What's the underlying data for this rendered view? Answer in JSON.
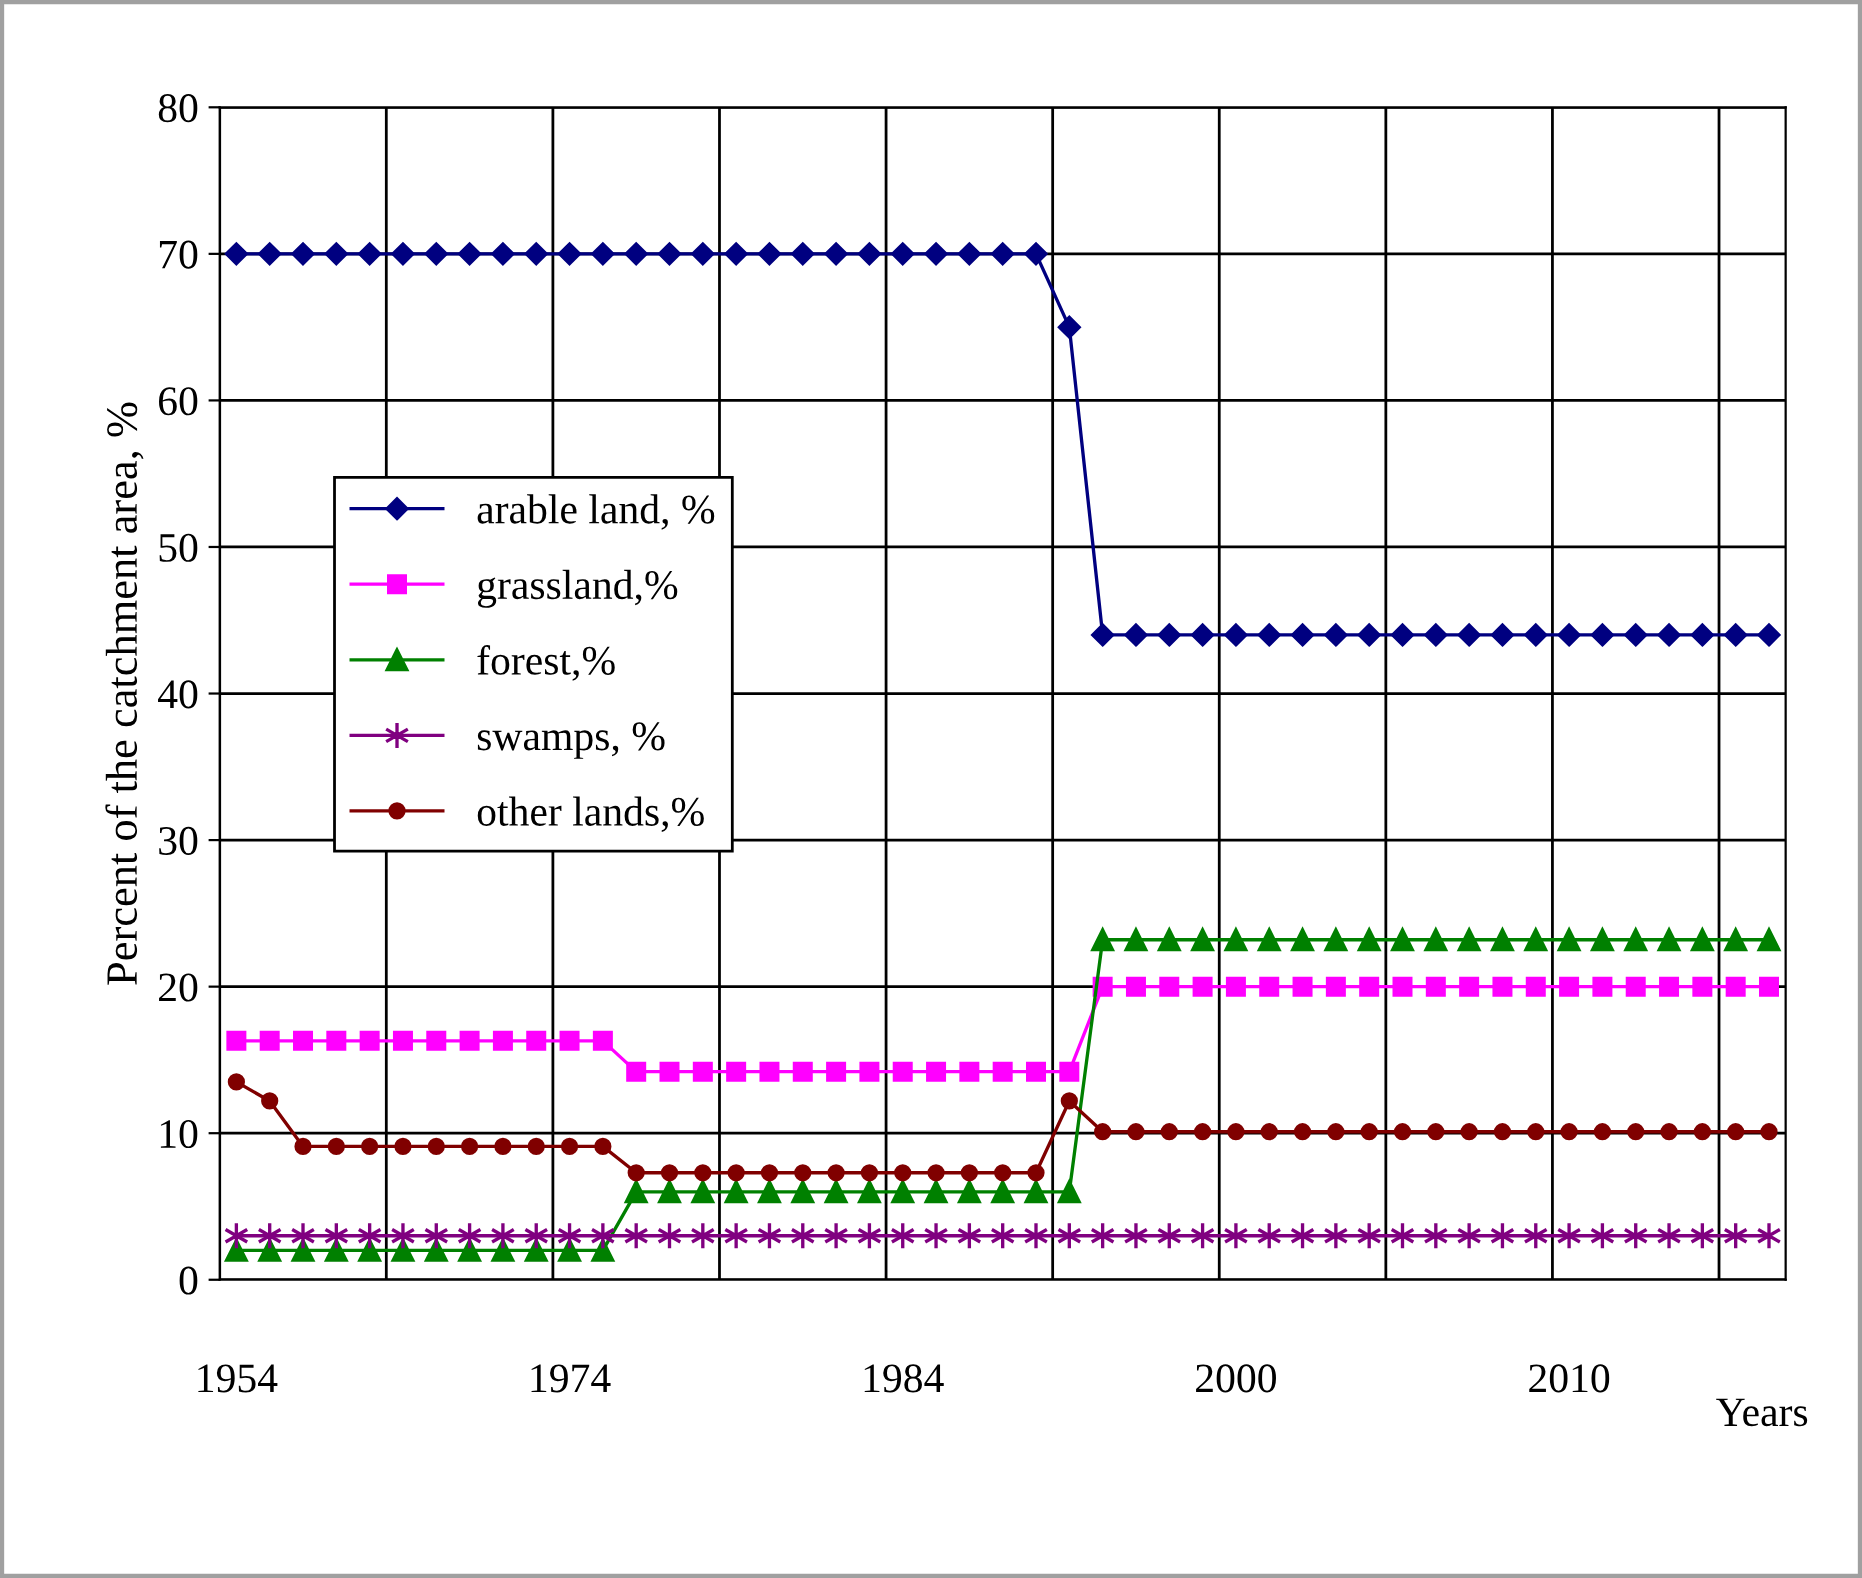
{
  "chart_data": {
    "type": "line",
    "xlabel": "Years",
    "ylabel": "Percent of the catchment area, %",
    "categories": [
      "1954",
      null,
      null,
      null,
      null,
      null,
      null,
      null,
      null,
      null,
      "1974",
      null,
      null,
      null,
      null,
      null,
      null,
      null,
      null,
      null,
      "1984",
      null,
      null,
      null,
      null,
      null,
      null,
      null,
      null,
      null,
      "2000",
      null,
      null,
      null,
      null,
      null,
      null,
      null,
      null,
      null,
      "2010",
      null,
      null,
      null,
      null,
      null,
      null
    ],
    "series": [
      {
        "name": "arable land, %",
        "color": "#000080",
        "marker": "diamond",
        "values": [
          70,
          70,
          70,
          70,
          70,
          70,
          70,
          70,
          70,
          70,
          70,
          70,
          70,
          70,
          70,
          70,
          70,
          70,
          70,
          70,
          70,
          70,
          70,
          70,
          70,
          65,
          44,
          44,
          44,
          44,
          44,
          44,
          44,
          44,
          44,
          44,
          44,
          44,
          44,
          44,
          44,
          44,
          44,
          44,
          44,
          44,
          44
        ]
      },
      {
        "name": "grassland,%",
        "color": "#ff00ff",
        "marker": "square",
        "values": [
          16.3,
          16.3,
          16.3,
          16.3,
          16.3,
          16.3,
          16.3,
          16.3,
          16.3,
          16.3,
          16.3,
          16.3,
          14.2,
          14.2,
          14.2,
          14.2,
          14.2,
          14.2,
          14.2,
          14.2,
          14.2,
          14.2,
          14.2,
          14.2,
          14.2,
          14.2,
          20,
          20,
          20,
          20,
          20,
          20,
          20,
          20,
          20,
          20,
          20,
          20,
          20,
          20,
          20,
          20,
          20,
          20,
          20,
          20,
          20
        ]
      },
      {
        "name": "forest,%",
        "color": "#008000",
        "marker": "triangle",
        "values": [
          2,
          2,
          2,
          2,
          2,
          2,
          2,
          2,
          2,
          2,
          2,
          2,
          6,
          6,
          6,
          6,
          6,
          6,
          6,
          6,
          6,
          6,
          6,
          6,
          6,
          6,
          23.2,
          23.2,
          23.2,
          23.2,
          23.2,
          23.2,
          23.2,
          23.2,
          23.2,
          23.2,
          23.2,
          23.2,
          23.2,
          23.2,
          23.2,
          23.2,
          23.2,
          23.2,
          23.2,
          23.2,
          23.2
        ]
      },
      {
        "name": "swamps, %",
        "color": "#800080",
        "marker": "cross",
        "values": [
          3,
          3,
          3,
          3,
          3,
          3,
          3,
          3,
          3,
          3,
          3,
          3,
          3,
          3,
          3,
          3,
          3,
          3,
          3,
          3,
          3,
          3,
          3,
          3,
          3,
          3,
          3,
          3,
          3,
          3,
          3,
          3,
          3,
          3,
          3,
          3,
          3,
          3,
          3,
          3,
          3,
          3,
          3,
          3,
          3,
          3,
          3
        ]
      },
      {
        "name": "other lands,%",
        "color": "#800000",
        "marker": "circle",
        "values": [
          13.5,
          12.2,
          9.1,
          9.1,
          9.1,
          9.1,
          9.1,
          9.1,
          9.1,
          9.1,
          9.1,
          9.1,
          7.3,
          7.3,
          7.3,
          7.3,
          7.3,
          7.3,
          7.3,
          7.3,
          7.3,
          7.3,
          7.3,
          7.3,
          7.3,
          12.2,
          10.1,
          10.1,
          10.1,
          10.1,
          10.1,
          10.1,
          10.1,
          10.1,
          10.1,
          10.1,
          10.1,
          10.1,
          10.1,
          10.1,
          10.1,
          10.1,
          10.1,
          10.1,
          10.1,
          10.1,
          10.1
        ]
      }
    ],
    "ylim": [
      0,
      80
    ],
    "yticks": [
      0,
      10,
      20,
      30,
      40,
      50,
      60,
      70,
      80
    ],
    "grid": true,
    "legend": "center left",
    "line_style": "solid"
  }
}
